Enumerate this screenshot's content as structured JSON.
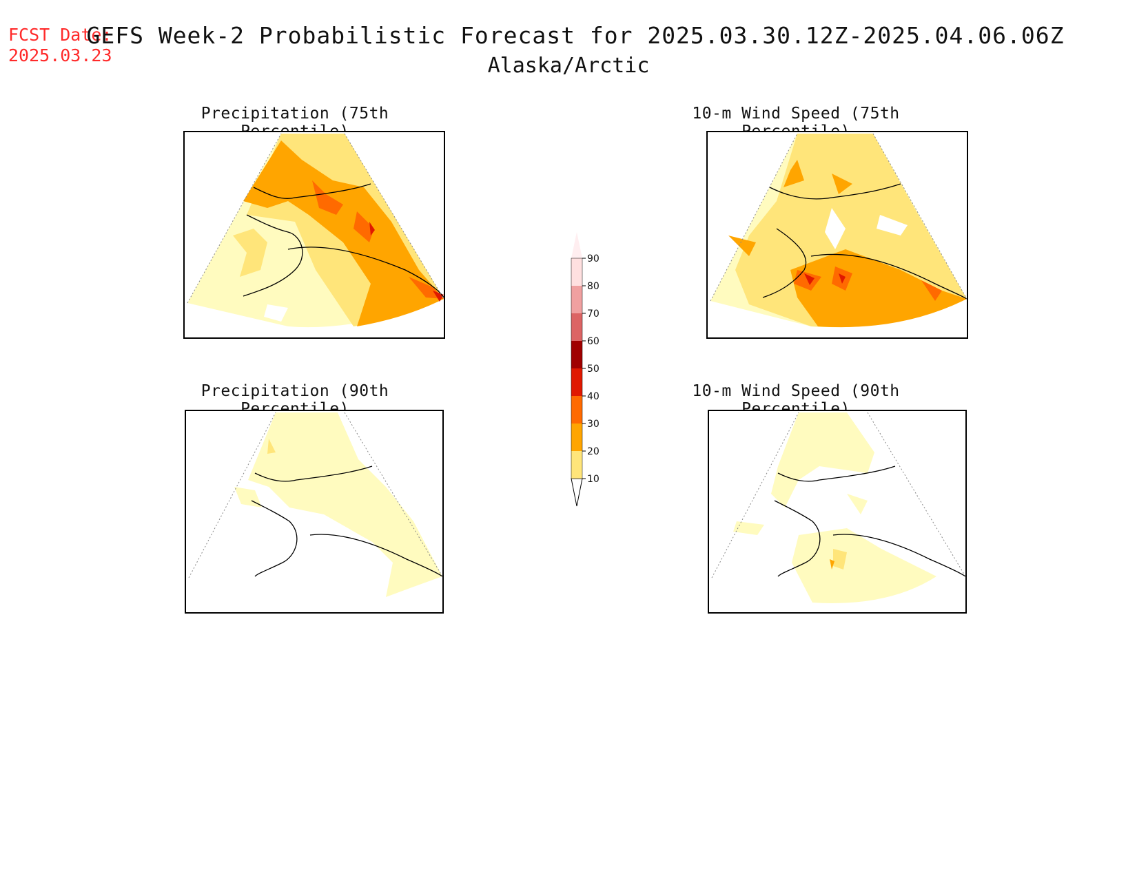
{
  "header": {
    "fcst_label": "FCST Date:",
    "fcst_date": "2025.03.23",
    "title": "GEFS Week-2 Probabilistic Forecast for 2025.03.30.12Z-2025.04.06.06Z",
    "subtitle": "Alaska/Arctic"
  },
  "panels": [
    {
      "title": "Precipitation (75th Percentile)",
      "level": "high-precip"
    },
    {
      "title": "10-m Wind Speed (75th Percentile)",
      "level": "high-wind"
    },
    {
      "title": "Precipitation (90th Percentile)",
      "level": "low-precip"
    },
    {
      "title": "10-m Wind Speed (90th Percentile)",
      "level": "low-wind"
    }
  ],
  "colorbar": {
    "ticks": [
      "10",
      "20",
      "30",
      "40",
      "50",
      "60",
      "70",
      "80",
      "90"
    ],
    "colors": [
      "#fffbbf",
      "#ffe57a",
      "#ffa500",
      "#ff6a00",
      "#e01800",
      "#a00000",
      "#dc6464",
      "#f0a0a0",
      "#ffe0e0"
    ]
  }
}
